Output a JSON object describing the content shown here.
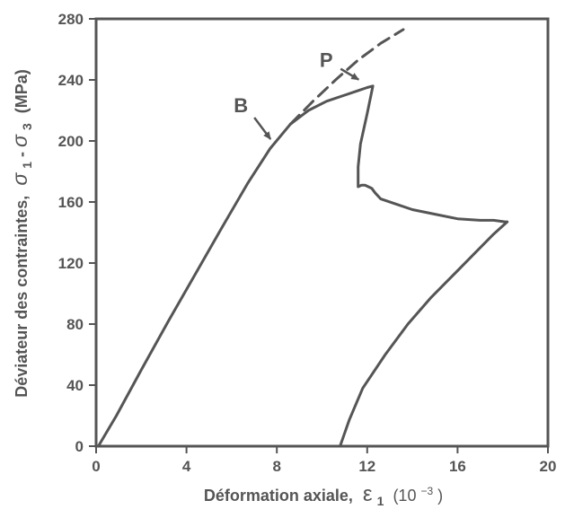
{
  "chart_data": {
    "type": "line",
    "title": "",
    "xlabel": "Déformation axiale,",
    "xlabel_symbol": "ε",
    "xlabel_sub": "1",
    "xlabel_unit_prefix": "(10",
    "xlabel_unit_exp": "−3",
    "xlabel_unit_suffix": ")",
    "ylabel": "Déviateur des contraintes,",
    "ylabel_math_1": "σ",
    "ylabel_sub_1": "1",
    "ylabel_dash": "-",
    "ylabel_math_2": "σ",
    "ylabel_sub_2": "3",
    "ylabel_unit": "(MPa)",
    "xlim": [
      0,
      20
    ],
    "ylim": [
      0,
      280
    ],
    "xticks": [
      "0",
      "4",
      "8",
      "12",
      "16",
      "20"
    ],
    "yticks": [
      "0",
      "40",
      "80",
      "120",
      "160",
      "200",
      "240",
      "280"
    ],
    "grid": false,
    "color": "#555555",
    "series": [
      {
        "style": "solid",
        "x": [
          0.1,
          0.9,
          2.0,
          3.2,
          4.4,
          5.6,
          6.7,
          7.7,
          8.6,
          9.4,
          10.2,
          11.0,
          11.6,
          12.0,
          12.25,
          12.0,
          11.7,
          11.6,
          11.6,
          11.75,
          11.9,
          12.05,
          12.2,
          12.35,
          12.6,
          13.2,
          14.0,
          15.0,
          16.0,
          17.0,
          17.6,
          18.1,
          18.2,
          17.6,
          16.8,
          15.8,
          14.8,
          13.8,
          12.8,
          11.8,
          11.2,
          10.8
        ],
        "y": [
          0,
          20,
          50,
          82,
          113,
          144,
          172,
          195,
          211,
          220,
          226,
          230,
          233,
          235,
          236,
          218,
          198,
          183,
          170,
          171,
          171,
          170,
          169,
          166,
          162,
          159,
          155,
          152,
          149,
          148,
          148,
          147,
          147,
          139,
          127,
          112,
          97,
          80,
          60,
          38,
          17,
          0
        ]
      },
      {
        "style": "dashed",
        "x": [
          8.6,
          9.6,
          10.6,
          11.6,
          12.6,
          13.6
        ],
        "y": [
          211,
          226,
          240,
          253,
          264,
          273
        ]
      }
    ],
    "annotations": [
      {
        "text": "B",
        "x": 7.8,
        "y": 200
      },
      {
        "text": "P",
        "x": 11.7,
        "y": 239
      }
    ]
  }
}
